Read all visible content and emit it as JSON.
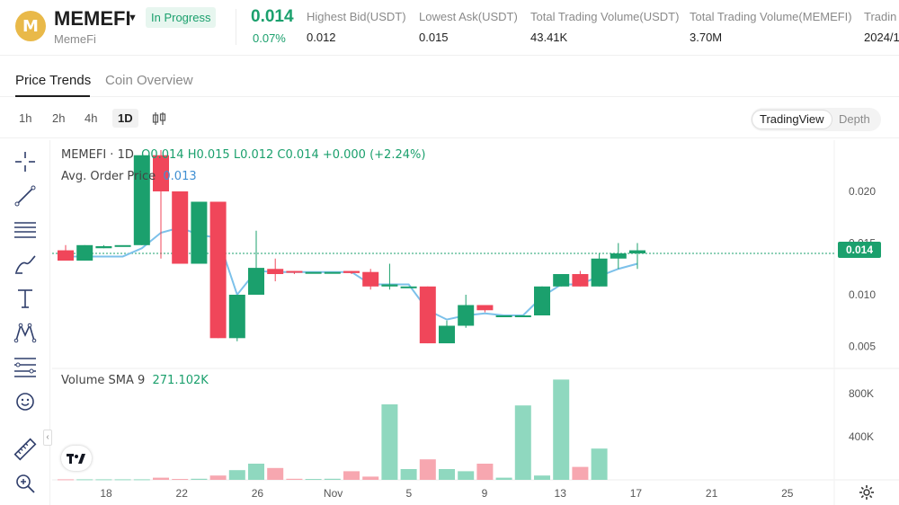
{
  "header": {
    "symbol": "MEMEFI",
    "name": "MemeFi",
    "logo_letter": "M",
    "status_badge": "In Progress",
    "last_price": "0.014",
    "change_pct": "0.07%",
    "stats": [
      {
        "label": "Highest Bid(USDT)",
        "value": "0.012"
      },
      {
        "label": "Lowest Ask(USDT)",
        "value": "0.015"
      },
      {
        "label": "Total Trading Volume(USDT)",
        "value": "43.41K"
      },
      {
        "label": "Total Trading Volume(MEMEFI)",
        "value": "3.70M"
      },
      {
        "label": "Tradin",
        "value": "2024/1"
      }
    ]
  },
  "tabs": [
    {
      "label": "Price Trends",
      "active": true
    },
    {
      "label": "Coin Overview",
      "active": false
    }
  ],
  "timeframes": [
    "1h",
    "2h",
    "4h",
    "1D"
  ],
  "active_timeframe": "1D",
  "view_toggle": [
    "TradingView",
    "Depth"
  ],
  "active_view": "TradingView",
  "sidebar_tools": [
    "crosshair-icon",
    "trend-line-icon",
    "horizontal-lines-icon",
    "brush-icon",
    "text-icon",
    "pattern-icon",
    "fib-levels-icon",
    "emoji-icon",
    "ruler-icon",
    "zoom-in-icon"
  ],
  "legend": {
    "title": "MEMEFI · 1D",
    "ohlc": "O0.014 H0.015 L0.012 C0.014 +0.000 (+2.24%)",
    "avg_label": "Avg. Order Price",
    "avg_value": "0.013",
    "vol_label": "Volume SMA 9",
    "vol_value": "271.102K"
  },
  "current_price_tag": "0.014",
  "colors": {
    "up": "#1ba06d",
    "down": "#f0465a",
    "vol_up": "#8fd8bf",
    "vol_down": "#f7a7b0",
    "avg_line": "#7cc1ea",
    "accent_green": "#1ba06d"
  },
  "chart_data": {
    "type": "candlestick",
    "price_axis_ticks": [
      "0.020",
      "0.015",
      "0.010",
      "0.005"
    ],
    "volume_axis_ticks": [
      "800K",
      "400K"
    ],
    "x_tick_labels": [
      "18",
      "22",
      "26",
      "Nov",
      "5",
      "9",
      "13",
      "17",
      "21",
      "25"
    ],
    "candles": [
      {
        "o": 0.0143,
        "h": 0.0148,
        "l": 0.0133,
        "c": 0.0133
      },
      {
        "o": 0.0133,
        "h": 0.0148,
        "l": 0.0133,
        "c": 0.0148
      },
      {
        "o": 0.0145,
        "h": 0.0148,
        "l": 0.0145,
        "c": 0.0147
      },
      {
        "o": 0.0148,
        "h": 0.0148,
        "l": 0.0148,
        "c": 0.0148
      },
      {
        "o": 0.0148,
        "h": 0.0235,
        "l": 0.0148,
        "c": 0.0235
      },
      {
        "o": 0.0235,
        "h": 0.024,
        "l": 0.0135,
        "c": 0.02
      },
      {
        "o": 0.02,
        "h": 0.02,
        "l": 0.013,
        "c": 0.013
      },
      {
        "o": 0.013,
        "h": 0.019,
        "l": 0.013,
        "c": 0.019
      },
      {
        "o": 0.019,
        "h": 0.019,
        "l": 0.0058,
        "c": 0.0058
      },
      {
        "o": 0.0058,
        "h": 0.01,
        "l": 0.0055,
        "c": 0.01
      },
      {
        "o": 0.01,
        "h": 0.0162,
        "l": 0.01,
        "c": 0.0126
      },
      {
        "o": 0.0125,
        "h": 0.0135,
        "l": 0.0113,
        "c": 0.012
      },
      {
        "o": 0.0123,
        "h": 0.0123,
        "l": 0.012,
        "c": 0.0122
      },
      {
        "o": 0.0122,
        "h": 0.0122,
        "l": 0.0122,
        "c": 0.0122
      },
      {
        "o": 0.0122,
        "h": 0.0122,
        "l": 0.0122,
        "c": 0.0122
      },
      {
        "o": 0.0123,
        "h": 0.0123,
        "l": 0.012,
        "c": 0.0121
      },
      {
        "o": 0.0122,
        "h": 0.0125,
        "l": 0.0105,
        "c": 0.0108
      },
      {
        "o": 0.0108,
        "h": 0.013,
        "l": 0.0105,
        "c": 0.011
      },
      {
        "o": 0.0108,
        "h": 0.0108,
        "l": 0.0108,
        "c": 0.0108
      },
      {
        "o": 0.0108,
        "h": 0.0108,
        "l": 0.0053,
        "c": 0.0053
      },
      {
        "o": 0.0053,
        "h": 0.0075,
        "l": 0.0053,
        "c": 0.007
      },
      {
        "o": 0.007,
        "h": 0.01,
        "l": 0.0068,
        "c": 0.009
      },
      {
        "o": 0.009,
        "h": 0.009,
        "l": 0.0083,
        "c": 0.0085
      },
      {
        "o": 0.008,
        "h": 0.008,
        "l": 0.008,
        "c": 0.008
      },
      {
        "o": 0.008,
        "h": 0.008,
        "l": 0.008,
        "c": 0.008
      },
      {
        "o": 0.008,
        "h": 0.0108,
        "l": 0.008,
        "c": 0.0108
      },
      {
        "o": 0.0108,
        "h": 0.012,
        "l": 0.0108,
        "c": 0.012
      },
      {
        "o": 0.012,
        "h": 0.0123,
        "l": 0.0108,
        "c": 0.0108
      },
      {
        "o": 0.0108,
        "h": 0.014,
        "l": 0.0108,
        "c": 0.0135
      },
      {
        "o": 0.0135,
        "h": 0.015,
        "l": 0.0125,
        "c": 0.014
      },
      {
        "o": 0.014,
        "h": 0.015,
        "l": 0.0125,
        "c": 0.0143
      }
    ],
    "avg_price": [
      0.0137,
      0.0137,
      0.0137,
      0.0137,
      0.0145,
      0.016,
      0.0165,
      0.0158,
      0.0155,
      0.01,
      0.0123,
      0.0122,
      0.0122,
      0.0122,
      0.0122,
      0.0122,
      0.011,
      0.011,
      0.011,
      0.0085,
      0.0076,
      0.008,
      0.0082,
      0.008,
      0.008,
      0.0098,
      0.011,
      0.011,
      0.0118,
      0.0125,
      0.013
    ],
    "volume": [
      5000,
      5000,
      5000,
      5000,
      5000,
      20000,
      8000,
      10000,
      40000,
      90000,
      150000,
      110000,
      10000,
      8000,
      10000,
      80000,
      30000,
      700000,
      100000,
      190000,
      100000,
      80000,
      150000,
      20000,
      690000,
      40000,
      930000,
      120000,
      290000,
      0,
      0
    ],
    "xlabel": "",
    "ylabel": ""
  }
}
